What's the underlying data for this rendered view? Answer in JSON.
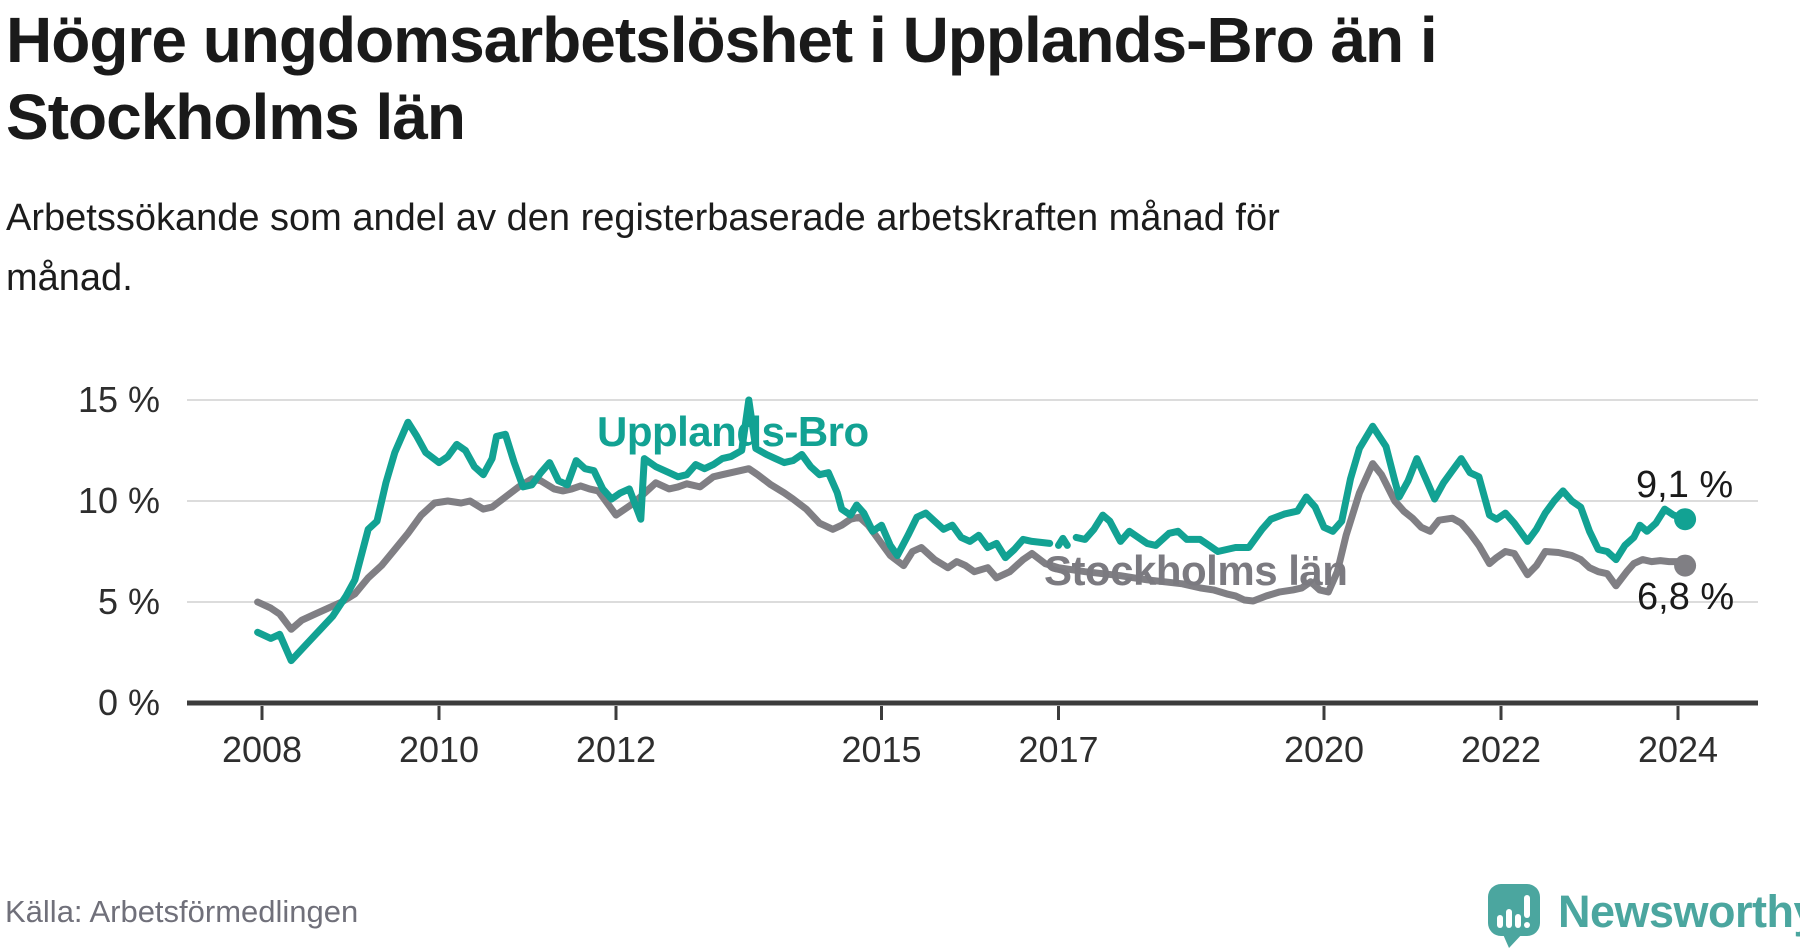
{
  "header": {
    "title_line1": "Högre ungdomsarbetslöshet i Upplands-Bro än i",
    "title_line2": "Stockholms län",
    "subtitle_line1": "Arbetssökande som andel av den registerbaserade arbetskraften månad för",
    "subtitle_line2": "månad."
  },
  "footer": {
    "source": "Källa: Arbetsförmedlingen",
    "brand": "Newsworthy"
  },
  "colors": {
    "upplands_bro": "#12A293",
    "stockholms_lan": "#807F84",
    "grid": "#DCDCDC",
    "axis": "#3C3C3C",
    "tick_text": "#2E2E2E",
    "value_text": "#1A1A1A",
    "logo_teal": "#4BA69F"
  },
  "chart_data": {
    "type": "line",
    "title": "Högre ungdomsarbetslöshet i Upplands-Bro än i Stockholms län",
    "subtitle": "Arbetssökande som andel av den registerbaserade arbetskraften månad för månad.",
    "y_unit": "%",
    "x_range": [
      2007.2,
      2024.9
    ],
    "y_range": [
      0,
      16
    ],
    "grid": "horizontal",
    "legend_position": "inline-labels",
    "x_ticks": [
      2008,
      2010,
      2012,
      2015,
      2017,
      2020,
      2022,
      2024
    ],
    "x_tick_labels": [
      "2008",
      "2010",
      "2012",
      "2015",
      "2017",
      "2020",
      "2022",
      "2024"
    ],
    "y_ticks": [
      0,
      5,
      10,
      15
    ],
    "y_tick_labels": [
      "0 %",
      "5 %",
      "10 %",
      "15 %"
    ],
    "series": [
      {
        "name": "Upplands-Bro",
        "color": "#12A293",
        "end_label": "9,1 %",
        "end_value": 9.1,
        "points": [
          [
            2007.95,
            3.5
          ],
          [
            2008.1,
            3.2
          ],
          [
            2008.2,
            3.4
          ],
          [
            2008.33,
            2.1
          ],
          [
            2008.5,
            2.9
          ],
          [
            2008.65,
            3.6
          ],
          [
            2008.8,
            4.3
          ],
          [
            2008.95,
            5.3
          ],
          [
            2009.05,
            6.1
          ],
          [
            2009.2,
            8.6
          ],
          [
            2009.3,
            9.0
          ],
          [
            2009.4,
            10.9
          ],
          [
            2009.5,
            12.4
          ],
          [
            2009.65,
            13.9
          ],
          [
            2009.75,
            13.2
          ],
          [
            2009.85,
            12.4
          ],
          [
            2010.0,
            11.9
          ],
          [
            2010.1,
            12.2
          ],
          [
            2010.2,
            12.8
          ],
          [
            2010.3,
            12.5
          ],
          [
            2010.4,
            11.7
          ],
          [
            2010.5,
            11.3
          ],
          [
            2010.6,
            12.1
          ],
          [
            2010.65,
            13.2
          ],
          [
            2010.75,
            13.3
          ],
          [
            2010.85,
            11.9
          ],
          [
            2010.95,
            10.7
          ],
          [
            2011.05,
            10.8
          ],
          [
            2011.15,
            11.4
          ],
          [
            2011.25,
            11.9
          ],
          [
            2011.35,
            11.0
          ],
          [
            2011.45,
            10.8
          ],
          [
            2011.55,
            12.0
          ],
          [
            2011.65,
            11.6
          ],
          [
            2011.75,
            11.5
          ],
          [
            2011.85,
            10.6
          ],
          [
            2011.95,
            10.1
          ],
          [
            2012.05,
            10.4
          ],
          [
            2012.15,
            10.6
          ],
          [
            2012.28,
            9.1
          ],
          [
            2012.32,
            12.1
          ],
          [
            2012.45,
            11.7
          ],
          [
            2012.6,
            11.4
          ],
          [
            2012.7,
            11.2
          ],
          [
            2012.8,
            11.3
          ],
          [
            2012.9,
            11.8
          ],
          [
            2013.0,
            11.6
          ],
          [
            2013.1,
            11.8
          ],
          [
            2013.2,
            12.1
          ],
          [
            2013.3,
            12.2
          ],
          [
            2013.42,
            12.5
          ],
          [
            2013.5,
            15.0
          ],
          [
            2013.58,
            12.6
          ],
          [
            2013.7,
            12.3
          ],
          [
            2013.8,
            12.1
          ],
          [
            2013.9,
            11.9
          ],
          [
            2014.0,
            12.0
          ],
          [
            2014.1,
            12.3
          ],
          [
            2014.2,
            11.7
          ],
          [
            2014.3,
            11.3
          ],
          [
            2014.4,
            11.4
          ],
          [
            2014.5,
            10.4
          ],
          [
            2014.55,
            9.6
          ],
          [
            2014.65,
            9.3
          ],
          [
            2014.72,
            9.8
          ],
          [
            2014.8,
            9.4
          ],
          [
            2014.9,
            8.5
          ],
          [
            2015.0,
            8.8
          ],
          [
            2015.1,
            7.8
          ],
          [
            2015.18,
            7.3
          ],
          [
            2015.3,
            8.3
          ],
          [
            2015.4,
            9.2
          ],
          [
            2015.5,
            9.4
          ],
          [
            2015.6,
            9.0
          ],
          [
            2015.7,
            8.6
          ],
          [
            2015.8,
            8.8
          ],
          [
            2015.9,
            8.2
          ],
          [
            2016.0,
            8.0
          ],
          [
            2016.1,
            8.3
          ],
          [
            2016.2,
            7.7
          ],
          [
            2016.3,
            7.9
          ],
          [
            2016.4,
            7.2
          ],
          [
            2016.5,
            7.6
          ],
          [
            2016.6,
            8.1
          ],
          [
            2016.7,
            8.0
          ],
          [
            2016.8,
            7.95
          ],
          [
            2016.9,
            7.9
          ],
          [
            2016.95,
            null
          ],
          [
            2017.0,
            7.8
          ],
          [
            2017.05,
            8.15
          ],
          [
            2017.1,
            7.8
          ],
          [
            2017.13,
            null
          ],
          [
            2017.2,
            8.2
          ],
          [
            2017.3,
            8.1
          ],
          [
            2017.4,
            8.6
          ],
          [
            2017.5,
            9.3
          ],
          [
            2017.58,
            9.0
          ],
          [
            2017.7,
            8.0
          ],
          [
            2017.8,
            8.5
          ],
          [
            2017.9,
            8.2
          ],
          [
            2018.0,
            7.9
          ],
          [
            2018.1,
            7.8
          ],
          [
            2018.25,
            8.4
          ],
          [
            2018.35,
            8.5
          ],
          [
            2018.45,
            8.1
          ],
          [
            2018.6,
            8.1
          ],
          [
            2018.7,
            7.8
          ],
          [
            2018.8,
            7.5
          ],
          [
            2018.9,
            7.6
          ],
          [
            2019.0,
            7.7
          ],
          [
            2019.15,
            7.7
          ],
          [
            2019.3,
            8.6
          ],
          [
            2019.4,
            9.1
          ],
          [
            2019.55,
            9.35
          ],
          [
            2019.7,
            9.5
          ],
          [
            2019.8,
            10.2
          ],
          [
            2019.9,
            9.7
          ],
          [
            2020.0,
            8.7
          ],
          [
            2020.1,
            8.5
          ],
          [
            2020.2,
            9.0
          ],
          [
            2020.3,
            11.1
          ],
          [
            2020.4,
            12.6
          ],
          [
            2020.55,
            13.7
          ],
          [
            2020.7,
            12.7
          ],
          [
            2020.8,
            11.0
          ],
          [
            2020.85,
            10.2
          ],
          [
            2020.95,
            11.0
          ],
          [
            2021.05,
            12.1
          ],
          [
            2021.15,
            11.1
          ],
          [
            2021.25,
            10.1
          ],
          [
            2021.35,
            10.9
          ],
          [
            2021.45,
            11.5
          ],
          [
            2021.55,
            12.1
          ],
          [
            2021.65,
            11.4
          ],
          [
            2021.75,
            11.2
          ],
          [
            2021.87,
            9.3
          ],
          [
            2021.95,
            9.1
          ],
          [
            2022.05,
            9.4
          ],
          [
            2022.15,
            8.9
          ],
          [
            2022.3,
            8.0
          ],
          [
            2022.4,
            8.6
          ],
          [
            2022.5,
            9.4
          ],
          [
            2022.6,
            10.0
          ],
          [
            2022.7,
            10.5
          ],
          [
            2022.8,
            10.0
          ],
          [
            2022.9,
            9.7
          ],
          [
            2023.0,
            8.5
          ],
          [
            2023.1,
            7.6
          ],
          [
            2023.2,
            7.5
          ],
          [
            2023.3,
            7.1
          ],
          [
            2023.4,
            7.8
          ],
          [
            2023.5,
            8.2
          ],
          [
            2023.57,
            8.8
          ],
          [
            2023.65,
            8.5
          ],
          [
            2023.75,
            8.9
          ],
          [
            2023.85,
            9.6
          ],
          [
            2023.95,
            9.3
          ],
          [
            2024.08,
            9.1
          ]
        ]
      },
      {
        "name": "Stockholms län",
        "color": "#807F84",
        "end_label": "6,8 %",
        "end_value": 6.8,
        "points": [
          [
            2007.95,
            5.0
          ],
          [
            2008.1,
            4.7
          ],
          [
            2008.2,
            4.4
          ],
          [
            2008.33,
            3.65
          ],
          [
            2008.45,
            4.1
          ],
          [
            2008.6,
            4.4
          ],
          [
            2008.75,
            4.7
          ],
          [
            2008.9,
            5.0
          ],
          [
            2009.05,
            5.4
          ],
          [
            2009.2,
            6.2
          ],
          [
            2009.35,
            6.8
          ],
          [
            2009.5,
            7.6
          ],
          [
            2009.65,
            8.4
          ],
          [
            2009.8,
            9.3
          ],
          [
            2009.95,
            9.9
          ],
          [
            2010.1,
            10.0
          ],
          [
            2010.25,
            9.9
          ],
          [
            2010.35,
            10.0
          ],
          [
            2010.5,
            9.6
          ],
          [
            2010.6,
            9.7
          ],
          [
            2010.75,
            10.2
          ],
          [
            2010.9,
            10.7
          ],
          [
            2011.05,
            11.1
          ],
          [
            2011.15,
            11.0
          ],
          [
            2011.3,
            10.6
          ],
          [
            2011.4,
            10.5
          ],
          [
            2011.5,
            10.6
          ],
          [
            2011.6,
            10.75
          ],
          [
            2011.7,
            10.6
          ],
          [
            2011.8,
            10.5
          ],
          [
            2011.9,
            9.9
          ],
          [
            2012.0,
            9.3
          ],
          [
            2012.1,
            9.6
          ],
          [
            2012.2,
            9.9
          ],
          [
            2012.35,
            10.5
          ],
          [
            2012.45,
            10.9
          ],
          [
            2012.6,
            10.6
          ],
          [
            2012.7,
            10.7
          ],
          [
            2012.8,
            10.85
          ],
          [
            2012.95,
            10.7
          ],
          [
            2013.1,
            11.2
          ],
          [
            2013.2,
            11.3
          ],
          [
            2013.35,
            11.45
          ],
          [
            2013.5,
            11.6
          ],
          [
            2013.6,
            11.3
          ],
          [
            2013.75,
            10.8
          ],
          [
            2013.9,
            10.4
          ],
          [
            2014.0,
            10.1
          ],
          [
            2014.15,
            9.6
          ],
          [
            2014.3,
            8.9
          ],
          [
            2014.45,
            8.6
          ],
          [
            2014.55,
            8.8
          ],
          [
            2014.65,
            9.1
          ],
          [
            2014.75,
            9.2
          ],
          [
            2014.85,
            8.8
          ],
          [
            2015.0,
            7.9
          ],
          [
            2015.1,
            7.3
          ],
          [
            2015.25,
            6.8
          ],
          [
            2015.35,
            7.5
          ],
          [
            2015.45,
            7.7
          ],
          [
            2015.6,
            7.1
          ],
          [
            2015.75,
            6.7
          ],
          [
            2015.85,
            7.0
          ],
          [
            2015.95,
            6.8
          ],
          [
            2016.05,
            6.5
          ],
          [
            2016.2,
            6.7
          ],
          [
            2016.3,
            6.2
          ],
          [
            2016.45,
            6.5
          ],
          [
            2016.6,
            7.1
          ],
          [
            2016.7,
            7.4
          ],
          [
            2016.85,
            6.9
          ],
          [
            2017.0,
            6.7
          ],
          [
            2017.15,
            6.6
          ],
          [
            2017.3,
            6.5
          ],
          [
            2017.5,
            6.4
          ],
          [
            2017.7,
            6.3
          ],
          [
            2017.85,
            6.2
          ],
          [
            2018.0,
            6.1
          ],
          [
            2018.2,
            6.0
          ],
          [
            2018.4,
            5.9
          ],
          [
            2018.6,
            5.7
          ],
          [
            2018.75,
            5.6
          ],
          [
            2018.9,
            5.4
          ],
          [
            2019.0,
            5.3
          ],
          [
            2019.1,
            5.1
          ],
          [
            2019.2,
            5.05
          ],
          [
            2019.35,
            5.3
          ],
          [
            2019.5,
            5.5
          ],
          [
            2019.65,
            5.6
          ],
          [
            2019.75,
            5.7
          ],
          [
            2019.85,
            6.0
          ],
          [
            2019.95,
            5.6
          ],
          [
            2020.05,
            5.5
          ],
          [
            2020.15,
            6.5
          ],
          [
            2020.25,
            8.3
          ],
          [
            2020.4,
            10.4
          ],
          [
            2020.55,
            11.85
          ],
          [
            2020.65,
            11.3
          ],
          [
            2020.8,
            10.0
          ],
          [
            2020.9,
            9.5
          ],
          [
            2021.0,
            9.15
          ],
          [
            2021.1,
            8.7
          ],
          [
            2021.2,
            8.5
          ],
          [
            2021.3,
            9.05
          ],
          [
            2021.45,
            9.15
          ],
          [
            2021.55,
            8.9
          ],
          [
            2021.65,
            8.4
          ],
          [
            2021.75,
            7.8
          ],
          [
            2021.87,
            6.9
          ],
          [
            2021.95,
            7.2
          ],
          [
            2022.05,
            7.5
          ],
          [
            2022.15,
            7.4
          ],
          [
            2022.3,
            6.35
          ],
          [
            2022.4,
            6.8
          ],
          [
            2022.5,
            7.5
          ],
          [
            2022.65,
            7.45
          ],
          [
            2022.8,
            7.3
          ],
          [
            2022.9,
            7.1
          ],
          [
            2023.0,
            6.7
          ],
          [
            2023.1,
            6.5
          ],
          [
            2023.2,
            6.4
          ],
          [
            2023.3,
            5.8
          ],
          [
            2023.42,
            6.5
          ],
          [
            2023.5,
            6.9
          ],
          [
            2023.6,
            7.1
          ],
          [
            2023.7,
            7.0
          ],
          [
            2023.8,
            7.05
          ],
          [
            2023.9,
            7.0
          ],
          [
            2024.0,
            7.0
          ],
          [
            2024.08,
            6.8
          ]
        ]
      }
    ]
  }
}
